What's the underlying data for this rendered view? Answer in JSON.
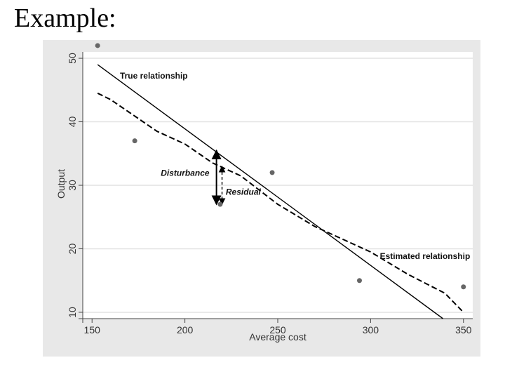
{
  "slide": {
    "title": "Example:"
  },
  "chart_data": {
    "type": "scatter",
    "xlabel": "Average cost",
    "ylabel": "Output",
    "xlim": [
      145,
      355
    ],
    "ylim": [
      9,
      51
    ],
    "x_ticks": [
      150,
      200,
      250,
      300,
      350
    ],
    "y_ticks": [
      10,
      20,
      30,
      40,
      50
    ],
    "grid": "horizontal",
    "points": [
      {
        "x": 153,
        "y": 52
      },
      {
        "x": 173,
        "y": 37
      },
      {
        "x": 219,
        "y": 27
      },
      {
        "x": 247,
        "y": 32
      },
      {
        "x": 294,
        "y": 15
      },
      {
        "x": 350,
        "y": 14
      }
    ],
    "series": [
      {
        "name": "True relationship",
        "style": "solid",
        "x": [
          153,
          339
        ],
        "y": [
          49,
          9
        ]
      },
      {
        "name": "Estimated relationship",
        "style": "dashed",
        "x": [
          153,
          160,
          170,
          185,
          200,
          215,
          230,
          250,
          270,
          300,
          320,
          340,
          350
        ],
        "y": [
          44.5,
          43.5,
          41.5,
          38.5,
          36.5,
          33.5,
          31.5,
          27,
          23.5,
          19.5,
          16,
          13,
          10
        ]
      }
    ],
    "annotations": [
      {
        "text": "True relationship",
        "x": 165,
        "y": 46.8,
        "style": "bold"
      },
      {
        "text": "Disturbance",
        "x": 187,
        "y": 31.5,
        "style": "bold-italic"
      },
      {
        "text": "Residual",
        "x": 222,
        "y": 28.5,
        "style": "bold-italic"
      },
      {
        "text": "Estimated relationship",
        "x": 305,
        "y": 18.4,
        "style": "bold"
      }
    ],
    "arrows": [
      {
        "name": "disturbance",
        "x": 217,
        "y_from": 35.5,
        "y_to": 27,
        "style": "solid"
      },
      {
        "name": "residual",
        "x": 220,
        "y_from": 27,
        "y_to": 33,
        "style": "dashed"
      }
    ],
    "colors": {
      "panel": "#e8e8e8",
      "plot": "#ffffff",
      "grid": "#e2e2e2",
      "point": "#666666",
      "line": "#000000"
    }
  }
}
